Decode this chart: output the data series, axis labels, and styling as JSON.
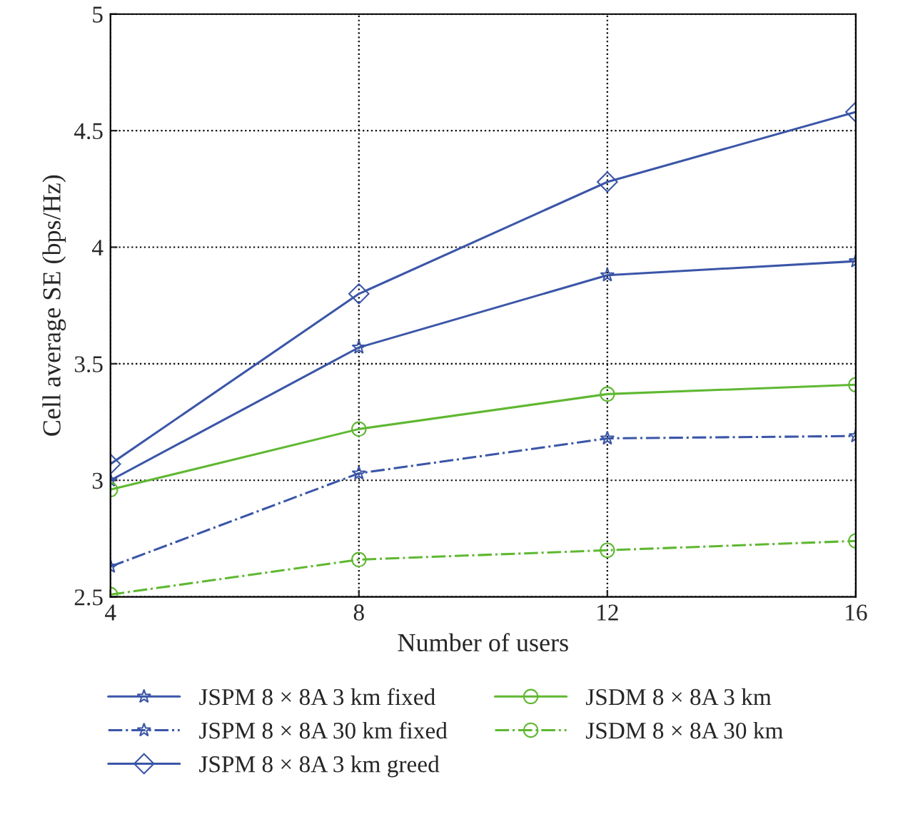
{
  "chart_data": {
    "type": "line",
    "xlabel": "Number of users",
    "ylabel": "Cell average SE (bps/Hz)",
    "x": [
      4,
      8,
      12,
      16
    ],
    "series": [
      {
        "name": "JSPM 8 × 8A 3 km fixed",
        "color": "#3b56a8",
        "marker": "star",
        "line_style": "solid",
        "values": [
          3.0,
          3.57,
          3.88,
          3.94
        ]
      },
      {
        "name": "JSPM 8 × 8A 30 km fixed",
        "color": "#3b56a8",
        "marker": "star",
        "line_style": "dashed",
        "values": [
          2.63,
          3.03,
          3.18,
          3.19
        ]
      },
      {
        "name": "JSPM 8 × 8A 3 km greed",
        "color": "#3b56a8",
        "marker": "diamond",
        "line_style": "solid",
        "values": [
          3.07,
          3.8,
          4.28,
          4.58
        ]
      },
      {
        "name": "JSDM 8 × 8A 3 km",
        "color": "#5fb832",
        "marker": "circle",
        "line_style": "solid",
        "values": [
          2.96,
          3.22,
          3.37,
          3.41
        ]
      },
      {
        "name": "JSDM 8 × 8A 30 km",
        "color": "#5fb832",
        "marker": "circle",
        "line_style": "dashed",
        "values": [
          2.51,
          2.66,
          2.7,
          2.74
        ]
      }
    ],
    "xlim": [
      4,
      16
    ],
    "xticks": [
      4,
      8,
      12,
      16
    ],
    "ylim": [
      2.5,
      5
    ],
    "yticks": [
      2.5,
      3,
      3.5,
      4,
      4.5,
      5
    ],
    "grid": true,
    "legend": "bottom"
  }
}
